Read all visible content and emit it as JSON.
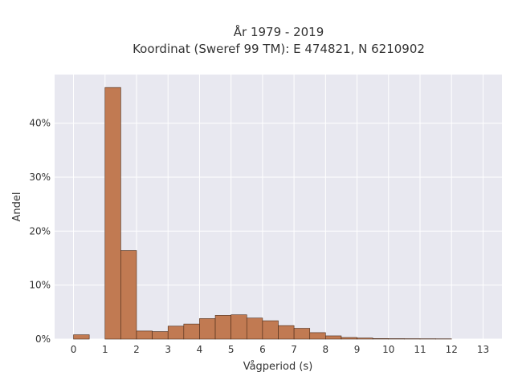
{
  "chart_data": {
    "type": "bar",
    "title_line1": "År 1979 - 2019",
    "title_line2": "Koordinat (Sweref 99 TM): E 474821, N 6210902",
    "xlabel": "Vågperiod (s)",
    "ylabel": "Andel",
    "xlim": [
      -0.6,
      13.6
    ],
    "ylim": [
      0,
      0.49
    ],
    "bin_width": 0.5,
    "x_ticks": [
      0,
      1,
      2,
      3,
      4,
      5,
      6,
      7,
      8,
      9,
      10,
      11,
      12,
      13
    ],
    "x_tick_labels": [
      "0",
      "1",
      "2",
      "3",
      "4",
      "5",
      "6",
      "7",
      "8",
      "9",
      "10",
      "11",
      "12",
      "13"
    ],
    "y_ticks": [
      0,
      0.1,
      0.2,
      0.3,
      0.4
    ],
    "y_tick_labels": [
      "0%",
      "10%",
      "20%",
      "30%",
      "40%"
    ],
    "grid": true,
    "bar_color": "#c17a52",
    "bar_edge_color": "#4a2a18",
    "plot_background": "#e8e8f0",
    "grid_color": "#ffffff",
    "bins": [
      {
        "x0": 0.0,
        "value": 0.008
      },
      {
        "x0": 1.0,
        "value": 0.466
      },
      {
        "x0": 1.5,
        "value": 0.164
      },
      {
        "x0": 2.0,
        "value": 0.015
      },
      {
        "x0": 2.5,
        "value": 0.014
      },
      {
        "x0": 3.0,
        "value": 0.024
      },
      {
        "x0": 3.5,
        "value": 0.028
      },
      {
        "x0": 4.0,
        "value": 0.038
      },
      {
        "x0": 4.5,
        "value": 0.044
      },
      {
        "x0": 5.0,
        "value": 0.045
      },
      {
        "x0": 5.5,
        "value": 0.039
      },
      {
        "x0": 6.0,
        "value": 0.034
      },
      {
        "x0": 6.5,
        "value": 0.025
      },
      {
        "x0": 7.0,
        "value": 0.02
      },
      {
        "x0": 7.5,
        "value": 0.012
      },
      {
        "x0": 8.0,
        "value": 0.006
      },
      {
        "x0": 8.5,
        "value": 0.003
      },
      {
        "x0": 9.0,
        "value": 0.002
      },
      {
        "x0": 9.5,
        "value": 0.001
      },
      {
        "x0": 10.0,
        "value": 0.0008
      },
      {
        "x0": 10.5,
        "value": 0.0007
      },
      {
        "x0": 11.0,
        "value": 0.0006
      },
      {
        "x0": 11.5,
        "value": 0.0005
      }
    ]
  }
}
